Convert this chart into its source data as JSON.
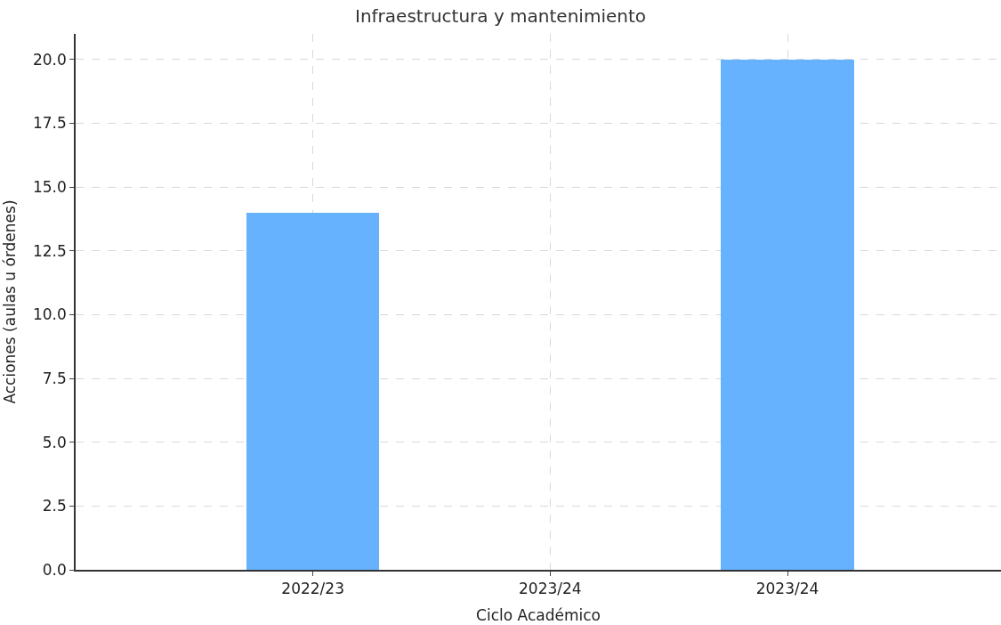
{
  "chart_data": {
    "type": "bar",
    "title": "Infraestructura y mantenimiento",
    "xlabel": "Ciclo Académico",
    "ylabel": "Acciones (aulas u órdenes)",
    "categories": [
      "2022/23",
      "2023/24",
      "2023/24"
    ],
    "values": [
      14,
      null,
      20
    ],
    "color": "#66b2ff",
    "ylim": [
      0,
      21
    ],
    "yticks": [
      {
        "value": 0,
        "label": "0.0"
      },
      {
        "value": 2.5,
        "label": "2.5"
      },
      {
        "value": 5,
        "label": "5.0"
      },
      {
        "value": 7.5,
        "label": "7.5"
      },
      {
        "value": 10,
        "label": "10.0"
      },
      {
        "value": 12.5,
        "label": "12.5"
      },
      {
        "value": 15,
        "label": "15.0"
      },
      {
        "value": 17.5,
        "label": "17.5"
      },
      {
        "value": 20,
        "label": "20.0"
      }
    ],
    "grid": true
  }
}
